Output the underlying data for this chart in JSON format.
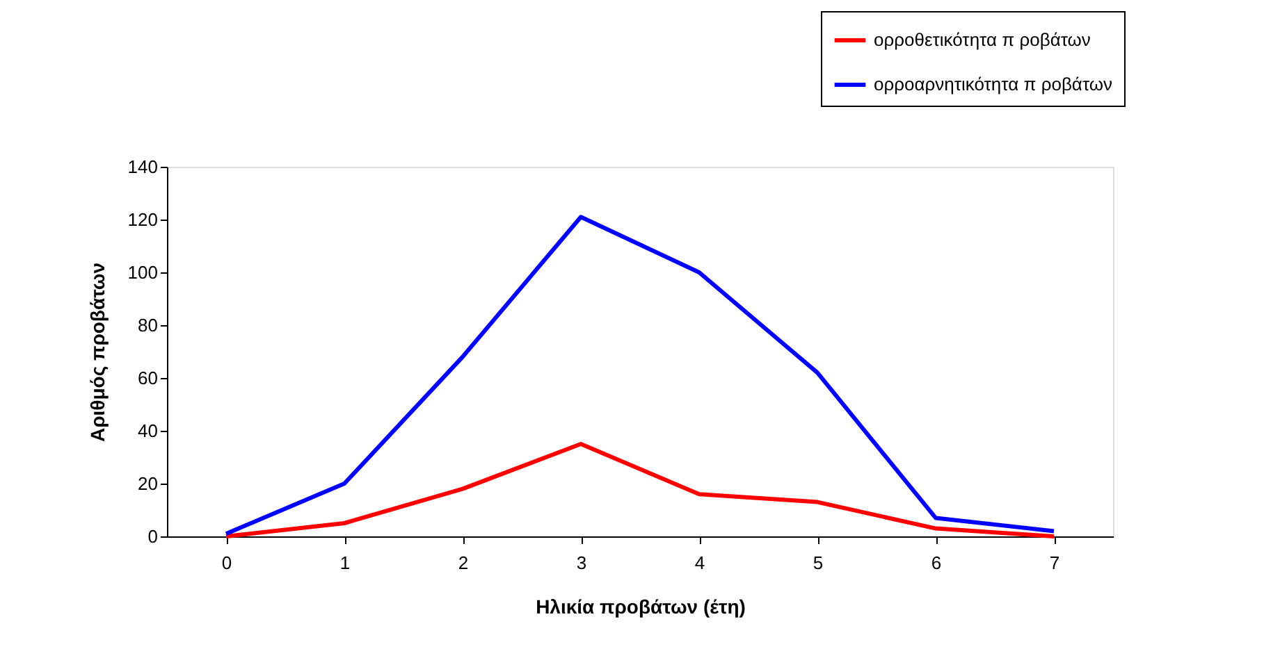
{
  "chart_data": {
    "type": "line",
    "xlabel": "Ηλικία προβάτων (έτη)",
    "ylabel": "Αριθμός προβάτων",
    "categories": [
      "0",
      "1",
      "2",
      "3",
      "4",
      "5",
      "6",
      "7"
    ],
    "series": [
      {
        "name": "ορροθετικότητα π ροβάτων",
        "color": "#ff0000",
        "values": [
          0,
          5,
          18,
          35,
          16,
          13,
          3,
          0
        ]
      },
      {
        "name": "ορροαρνητικότητα π ροβάτων",
        "color": "#0000ff",
        "values": [
          1,
          20,
          68,
          121,
          100,
          62,
          7,
          2
        ]
      }
    ],
    "ylim": [
      0,
      140
    ],
    "yticks": [
      0,
      20,
      40,
      60,
      80,
      100,
      120,
      140
    ],
    "legend": "top right"
  }
}
